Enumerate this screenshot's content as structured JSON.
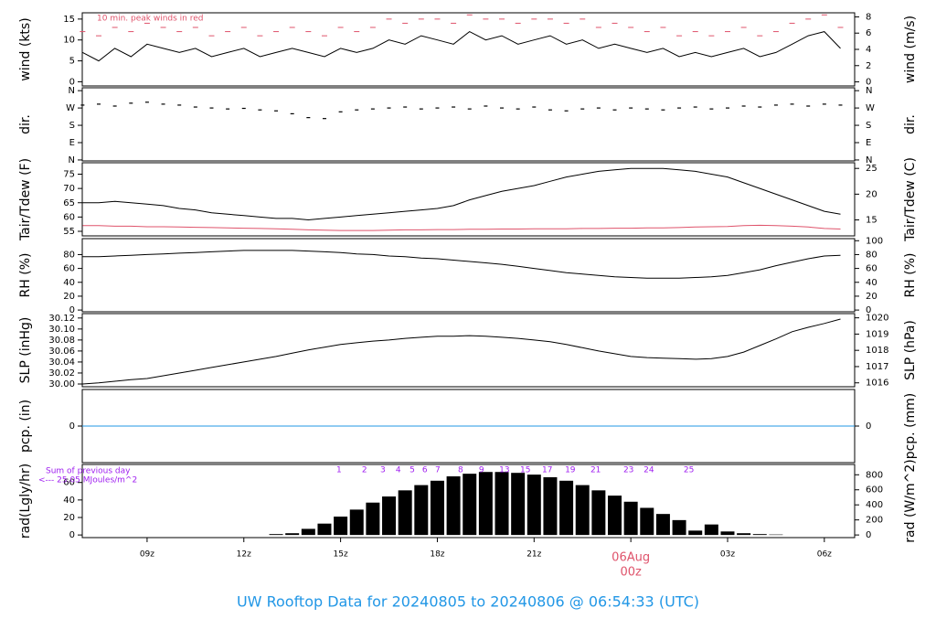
{
  "title": "UW Rooftop Data for 20240805  to  20240806 @ 06:54:33  (UTC)",
  "chart_data": [
    {
      "type": "line",
      "ylabel": "wind (kts)",
      "y2label": "wind (m/s)",
      "annotation": "10 min. peak winds in red",
      "xlim": [
        6.99,
        30.94
      ],
      "ylim": [
        -1,
        16.5
      ],
      "yticks": [
        0,
        5,
        10,
        15
      ],
      "y2lim": [
        -0.5,
        8.5
      ],
      "y2ticks": [
        0,
        2,
        4,
        6,
        8
      ],
      "x": [
        7,
        7.5,
        8,
        8.5,
        9,
        9.5,
        10,
        10.5,
        11,
        11.5,
        12,
        12.5,
        13,
        13.5,
        14,
        14.5,
        15,
        15.5,
        16,
        16.5,
        17,
        17.5,
        18,
        18.5,
        19,
        19.5,
        20,
        20.5,
        21,
        21.5,
        22,
        22.5,
        23,
        23.5,
        24,
        24.5,
        25,
        25.5,
        26,
        26.5,
        27,
        27.5,
        28,
        28.5,
        29,
        29.5,
        30,
        30.5
      ],
      "series": [
        {
          "color": "#000000",
          "style": "line",
          "values": [
            7,
            5,
            8,
            6,
            9,
            8,
            7,
            8,
            6,
            7,
            8,
            6,
            7,
            8,
            7,
            6,
            8,
            7,
            8,
            10,
            9,
            11,
            10,
            9,
            12,
            10,
            11,
            9,
            10,
            11,
            9,
            10,
            8,
            9,
            8,
            7,
            8,
            6,
            7,
            6,
            7,
            8,
            6,
            7,
            9,
            11,
            12,
            8
          ]
        },
        {
          "color": "#df536b",
          "style": "points",
          "values": [
            12,
            11,
            13,
            12,
            14,
            13,
            12,
            13,
            11,
            12,
            13,
            11,
            12,
            13,
            12,
            11,
            13,
            12,
            13,
            15,
            14,
            15,
            15,
            14,
            16,
            15,
            15,
            14,
            15,
            15,
            14,
            15,
            13,
            14,
            13,
            12,
            13,
            11,
            12,
            11,
            12,
            13,
            11,
            12,
            14,
            15,
            16,
            13
          ]
        }
      ]
    },
    {
      "type": "scatter",
      "ylabel": "dir.",
      "y2label": "dir.",
      "xlim": [
        6.99,
        30.94
      ],
      "ylim": [
        -5,
        375
      ],
      "yticks": [
        {
          "value": 0,
          "label": "N"
        },
        {
          "value": 90,
          "label": "E"
        },
        {
          "value": 180,
          "label": "S"
        },
        {
          "value": 270,
          "label": "W"
        },
        {
          "value": 360,
          "label": "N"
        }
      ],
      "y2lim": [
        -5,
        375
      ],
      "y2ticks": [
        {
          "value": 0,
          "label": "N"
        },
        {
          "value": 90,
          "label": "E"
        },
        {
          "value": 180,
          "label": "S"
        },
        {
          "value": 270,
          "label": "W"
        },
        {
          "value": 360,
          "label": "N"
        }
      ],
      "x": [
        7,
        7.5,
        8,
        8.5,
        9,
        9.5,
        10,
        10.5,
        11,
        11.5,
        12,
        12.5,
        13,
        13.5,
        14,
        14.5,
        15,
        15.5,
        16,
        16.5,
        17,
        17.5,
        18,
        18.5,
        19,
        19.5,
        20,
        20.5,
        21,
        21.5,
        22,
        22.5,
        23,
        23.5,
        24,
        24.5,
        25,
        25.5,
        26,
        26.5,
        27,
        27.5,
        28,
        28.5,
        29,
        29.5,
        30,
        30.5
      ],
      "series": [
        {
          "color": "#000000",
          "values": [
            285,
            290,
            280,
            295,
            300,
            290,
            285,
            275,
            270,
            265,
            268,
            260,
            255,
            240,
            220,
            215,
            250,
            260,
            265,
            270,
            275,
            265,
            270,
            275,
            265,
            280,
            270,
            265,
            275,
            260,
            255,
            265,
            270,
            260,
            270,
            265,
            260,
            270,
            275,
            265,
            270,
            280,
            275,
            285,
            290,
            280,
            290,
            285
          ]
        }
      ]
    },
    {
      "type": "line",
      "ylabel": "Tair/Tdew (F)",
      "y2label": "Tair/Tdew (C)",
      "xlim": [
        6.99,
        30.94
      ],
      "ylim": [
        53.4,
        79
      ],
      "yticks": [
        55,
        60,
        65,
        70,
        75
      ],
      "y2lim": [
        11.9,
        26.1
      ],
      "y2ticks": [
        15,
        20,
        25
      ],
      "x": [
        7,
        7.5,
        8,
        8.5,
        9,
        9.5,
        10,
        10.5,
        11,
        11.5,
        12,
        12.5,
        13,
        13.5,
        14,
        14.5,
        15,
        15.5,
        16,
        16.5,
        17,
        17.5,
        18,
        18.5,
        19,
        19.5,
        20,
        20.5,
        21,
        21.5,
        22,
        22.5,
        23,
        23.5,
        24,
        24.5,
        25,
        25.5,
        26,
        26.5,
        27,
        27.5,
        28,
        28.5,
        29,
        29.5,
        30,
        30.5
      ],
      "series": [
        {
          "color": "#000000",
          "style": "line",
          "values": [
            65,
            65,
            65.5,
            65,
            64.5,
            64,
            63,
            62.5,
            61.5,
            61,
            60.5,
            60,
            59.5,
            59.5,
            59,
            59.5,
            60,
            60.5,
            61,
            61.5,
            62,
            62.5,
            63,
            64,
            66,
            67.5,
            69,
            70,
            71,
            72.5,
            74,
            75,
            76,
            76.5,
            77,
            77,
            77,
            76.5,
            76,
            75,
            74,
            72,
            70,
            68,
            66,
            64,
            62,
            61
          ]
        },
        {
          "color": "#df536b",
          "style": "line",
          "values": [
            57,
            57,
            56.8,
            56.8,
            56.6,
            56.6,
            56.5,
            56.4,
            56.3,
            56.2,
            56.1,
            56,
            55.9,
            55.7,
            55.5,
            55.4,
            55.3,
            55.3,
            55.3,
            55.4,
            55.5,
            55.5,
            55.6,
            55.6,
            55.7,
            55.7,
            55.8,
            55.8,
            55.9,
            55.9,
            55.9,
            56,
            56,
            56.1,
            56.1,
            56.2,
            56.2,
            56.3,
            56.5,
            56.6,
            56.7,
            57,
            57.1,
            57,
            56.8,
            56.5,
            56,
            55.8
          ]
        }
      ]
    },
    {
      "type": "line",
      "ylabel": "RH (%)",
      "y2label": "RH (%)",
      "xlim": [
        6.99,
        30.94
      ],
      "ylim": [
        -2.5,
        103
      ],
      "yticks": [
        0,
        20,
        40,
        60,
        80
      ],
      "y2lim": [
        -2.5,
        103
      ],
      "y2ticks": [
        0,
        20,
        40,
        60,
        80,
        100
      ],
      "x": [
        7,
        7.5,
        8,
        8.5,
        9,
        9.5,
        10,
        10.5,
        11,
        11.5,
        12,
        12.5,
        13,
        13.5,
        14,
        14.5,
        15,
        15.5,
        16,
        16.5,
        17,
        17.5,
        18,
        18.5,
        19,
        19.5,
        20,
        20.5,
        21,
        21.5,
        22,
        22.5,
        23,
        23.5,
        24,
        24.5,
        25,
        25.5,
        26,
        26.5,
        27,
        27.5,
        28,
        28.5,
        29,
        29.5,
        30,
        30.5
      ],
      "series": [
        {
          "color": "#000000",
          "style": "line",
          "values": [
            77,
            77,
            78,
            79,
            80,
            81,
            82,
            83,
            84,
            85,
            86,
            86,
            86,
            86,
            85,
            84,
            83,
            81,
            80,
            78,
            77,
            75,
            74,
            72,
            70,
            68,
            66,
            63,
            60,
            57,
            54,
            52,
            50,
            48,
            47,
            46,
            46,
            46,
            47,
            48,
            50,
            54,
            58,
            64,
            69,
            74,
            78,
            79
          ]
        }
      ]
    },
    {
      "type": "line",
      "ylabel": "SLP (inHg)",
      "y2label": "SLP (hPa)",
      "xlim": [
        6.99,
        30.94
      ],
      "ylim": [
        29.995,
        30.128
      ],
      "yticks": [
        {
          "value": 30.0,
          "label": "30.00"
        },
        {
          "value": 30.02,
          "label": "30.02"
        },
        {
          "value": 30.04,
          "label": "30.04"
        },
        {
          "value": 30.06,
          "label": "30.06"
        },
        {
          "value": 30.08,
          "label": "30.08"
        },
        {
          "value": 30.1,
          "label": "30.10"
        },
        {
          "value": 30.12,
          "label": "30.12"
        }
      ],
      "y2lim": [
        1015.76,
        1020.26
      ],
      "y2ticks": [
        1016,
        1017,
        1018,
        1019,
        1020
      ],
      "x": [
        7,
        7.5,
        8,
        8.5,
        9,
        9.5,
        10,
        10.5,
        11,
        11.5,
        12,
        12.5,
        13,
        13.5,
        14,
        14.5,
        15,
        15.5,
        16,
        16.5,
        17,
        17.5,
        18,
        18.5,
        19,
        19.5,
        20,
        20.5,
        21,
        21.5,
        22,
        22.5,
        23,
        23.5,
        24,
        24.5,
        25,
        25.5,
        26,
        26.5,
        27,
        27.5,
        28,
        28.5,
        29,
        29.5,
        30,
        30.5
      ],
      "series": [
        {
          "color": "#000000",
          "style": "line",
          "values": [
            30.0,
            30.002,
            30.005,
            30.008,
            30.01,
            30.015,
            30.02,
            30.025,
            30.03,
            30.035,
            30.04,
            30.045,
            30.05,
            30.056,
            30.062,
            30.067,
            30.072,
            30.075,
            30.078,
            30.08,
            30.083,
            30.085,
            30.087,
            30.087,
            30.088,
            30.087,
            30.085,
            30.083,
            30.08,
            30.077,
            30.072,
            30.066,
            30.06,
            30.055,
            30.05,
            30.048,
            30.047,
            30.046,
            30.045,
            30.046,
            30.05,
            30.058,
            30.07,
            30.082,
            30.095,
            30.103,
            30.11,
            30.118
          ]
        }
      ]
    },
    {
      "type": "line",
      "ylabel": "pcp. (in)",
      "y2label": "pcp. (mm)",
      "xlim": [
        6.99,
        30.94
      ],
      "ylim": [
        -1,
        1
      ],
      "yticks": [
        0
      ],
      "y2lim": [
        -1,
        1
      ],
      "y2ticks": [
        0
      ],
      "x": [
        6.99,
        30.94
      ],
      "series": [
        {
          "color": "#2297e6",
          "style": "line",
          "values": [
            0,
            0
          ]
        }
      ]
    },
    {
      "type": "bar",
      "ylabel": "rad(Lgly/hr)",
      "y2label": "rad (W/m^2)",
      "note": "Sum of previous day",
      "note2": "<--- 25.05 MJoules/m^2",
      "xlim": [
        6.99,
        30.94
      ],
      "ylim": [
        -3,
        80.6
      ],
      "yticks": [
        0,
        20,
        40,
        60
      ],
      "y2lim": [
        -35,
        937
      ],
      "y2ticks": [
        0,
        200,
        400,
        600,
        800
      ],
      "xticks": [
        {
          "value": 9,
          "label": "09z"
        },
        {
          "value": 12,
          "label": "12z"
        },
        {
          "value": 15,
          "label": "15z"
        },
        {
          "value": 18,
          "label": "18z"
        },
        {
          "value": 21,
          "label": "21z"
        },
        {
          "value": 27,
          "label": "03z"
        },
        {
          "value": 30,
          "label": "06z"
        }
      ],
      "date_mark": {
        "value": 24,
        "label": "06Aug",
        "sublabel": "00z"
      },
      "markers": [
        {
          "x": 14.95,
          "value": 1
        },
        {
          "x": 15.74,
          "value": 2
        },
        {
          "x": 16.31,
          "value": 3
        },
        {
          "x": 16.79,
          "value": 4
        },
        {
          "x": 17.22,
          "value": 5
        },
        {
          "x": 17.61,
          "value": 6
        },
        {
          "x": 18.01,
          "value": 7
        },
        {
          "x": 18.72,
          "value": 8
        },
        {
          "x": 19.37,
          "value": 9
        },
        {
          "x": 20.08,
          "value": 13
        },
        {
          "x": 20.73,
          "value": 15
        },
        {
          "x": 21.41,
          "value": 17
        },
        {
          "x": 22.12,
          "value": 19
        },
        {
          "x": 22.91,
          "value": 21
        },
        {
          "x": 23.93,
          "value": 23
        },
        {
          "x": 24.56,
          "value": 24
        },
        {
          "x": 25.8,
          "value": 25
        }
      ],
      "x": [
        7,
        7.5,
        8,
        8.5,
        9,
        9.5,
        10,
        10.5,
        11,
        11.5,
        12,
        12.5,
        13,
        13.5,
        14,
        14.5,
        15,
        15.5,
        16,
        16.5,
        17,
        17.5,
        18,
        18.5,
        19,
        19.5,
        20,
        20.5,
        21,
        21.5,
        22,
        22.5,
        23,
        23.5,
        24,
        24.5,
        25,
        25.5,
        26,
        26.5,
        27,
        27.5,
        28,
        28.5,
        29,
        29.5,
        30,
        30.5
      ],
      "series": [
        {
          "color": "#000000",
          "values": [
            0,
            0,
            0,
            0,
            0,
            0,
            0,
            0,
            0,
            0,
            0,
            0,
            1,
            2,
            7,
            13,
            21,
            29,
            37,
            44,
            51,
            57,
            62,
            67,
            70,
            72,
            72,
            71,
            69,
            66,
            62,
            57,
            51,
            45,
            38,
            31,
            24,
            17,
            5,
            12,
            4,
            2,
            1,
            0.5,
            0,
            0,
            0,
            0
          ]
        }
      ]
    }
  ]
}
